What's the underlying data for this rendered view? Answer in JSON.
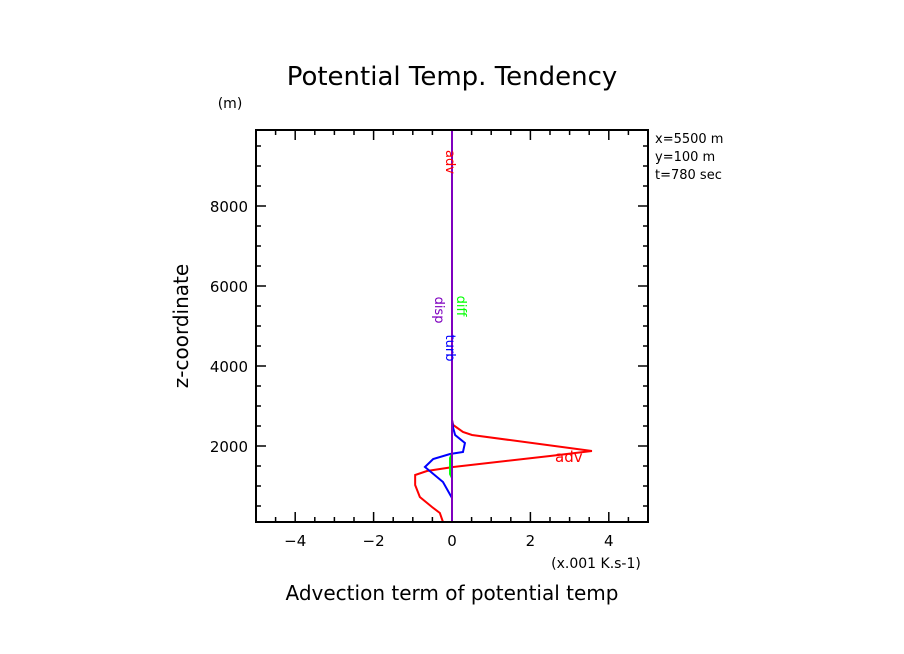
{
  "chart_data": {
    "type": "line",
    "title": "Potential Temp. Tendency",
    "xlabel": "Advection term of potential temp",
    "xunit": "(x.001 K.s-1)",
    "ylabel": "z-coordinate",
    "yunit": "(m)",
    "xlim": [
      -5,
      5
    ],
    "ylim": [
      100,
      9900
    ],
    "xticks": [
      -4,
      -2,
      0,
      2,
      4
    ],
    "yticks": [
      2000,
      4000,
      6000,
      8000
    ],
    "grid": false,
    "annotations": [
      "x=5500 m",
      "y=100 m",
      "t=780 sec"
    ],
    "series": [
      {
        "name": "adv",
        "color": "#ff0000",
        "x": [
          -0.23,
          -0.31,
          -0.51,
          -0.82,
          -0.94,
          -0.94,
          -0.64,
          0.03,
          2.5,
          3.57,
          0.51,
          0.28,
          0.03,
          0,
          0
        ],
        "z": [
          100,
          325,
          475,
          725,
          1025,
          1275,
          1375,
          1475,
          1750,
          1875,
          2275,
          2350,
          2525,
          2650,
          9900
        ]
      },
      {
        "name": "turb",
        "color": "#0000ff",
        "x": [
          0,
          0,
          -0.23,
          -0.69,
          -0.48,
          -0.05,
          0.28,
          0.33,
          0.08,
          0.03,
          0,
          0
        ],
        "z": [
          100,
          700,
          1100,
          1475,
          1675,
          1800,
          1850,
          2075,
          2275,
          2450,
          2650,
          9900
        ]
      },
      {
        "name": "diff",
        "color": "#00ff00",
        "x": [
          0,
          0,
          -0.05,
          -0.05,
          0,
          0
        ],
        "z": [
          100,
          1200,
          1300,
          1700,
          1800,
          9900
        ]
      },
      {
        "name": "disp",
        "color": "#7f00bf",
        "x": [
          0,
          0
        ],
        "z": [
          100,
          9900
        ]
      }
    ],
    "series_label_z": {
      "adv": 9100,
      "diff": 5500,
      "disp": 5400,
      "turb": 4450
    }
  }
}
